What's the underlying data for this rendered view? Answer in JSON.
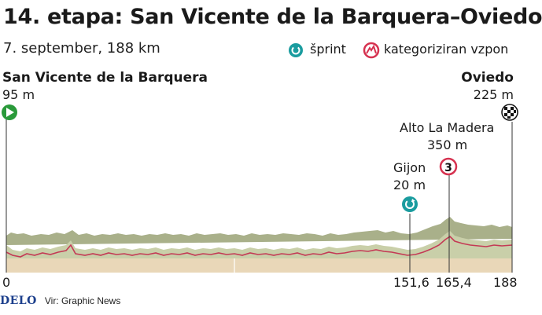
{
  "header": {
    "title": "14. etapa: San Vicente de la Barquera–Oviedo",
    "subtitle": "7. september, 188 km"
  },
  "legend": {
    "sprint": "šprint",
    "climb": "kategoriziran vzpon"
  },
  "start": {
    "name": "San Vicente de la Barquera",
    "altitude": "95 m",
    "icon": "start-play-icon"
  },
  "finish": {
    "name": "Oviedo",
    "altitude": "225 m",
    "icon": "checkered-flag-icon"
  },
  "climb": {
    "name": "Alto La Madera",
    "altitude": "350 m",
    "category": "3",
    "icon": "climb-mountain-icon"
  },
  "sprint": {
    "name": "Gijon",
    "altitude": "20 m",
    "icon": "sprint-icon"
  },
  "km_marks": {
    "start": "0",
    "sprint": "151,6",
    "climb": "165,4",
    "finish": "188"
  },
  "footer": {
    "logo": "DELO",
    "source": "Vir: Graphic News"
  },
  "colors": {
    "profile_top": "#a9b08a",
    "profile_front": "#c9cfa9",
    "terrain": "#e9d7b8",
    "route_line": "#c43a55",
    "sprint": "#1a9c9f",
    "climb": "#d63250",
    "start": "#2a9a3a"
  }
}
